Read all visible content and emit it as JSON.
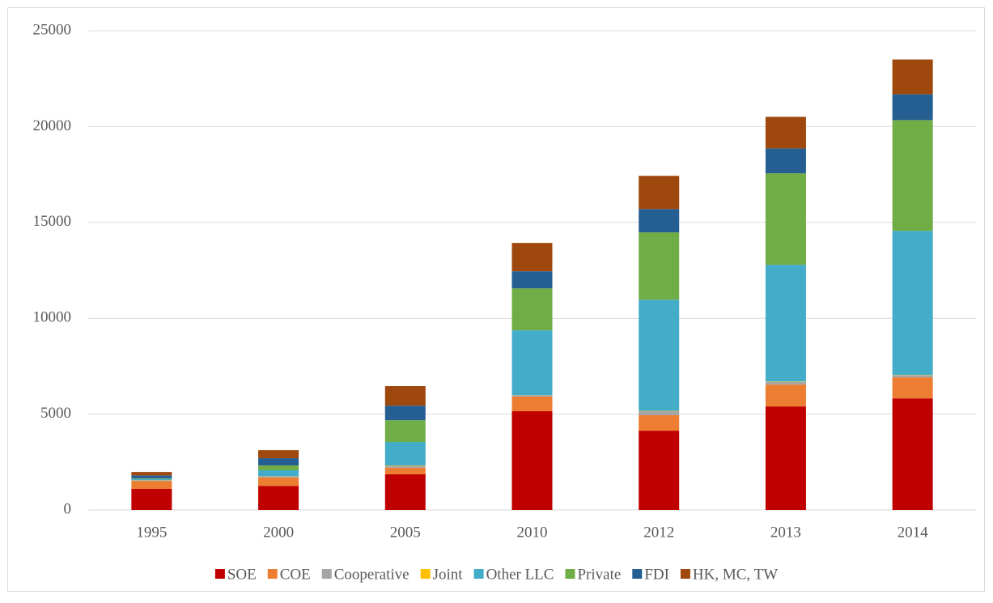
{
  "chart_data": {
    "type": "stacked_bar",
    "categories": [
      "1995",
      "2000",
      "2005",
      "2010",
      "2012",
      "2013",
      "2014"
    ],
    "series": [
      {
        "name": "SOE",
        "color": "#c00000",
        "values": [
          1100,
          1250,
          1860,
          5150,
          4135,
          5400,
          5820
        ]
      },
      {
        "name": "COE",
        "color": "#ed7d31",
        "values": [
          400,
          450,
          340,
          760,
          805,
          1140,
          1100
        ]
      },
      {
        "name": "Cooperative",
        "color": "#a5a5a5",
        "values": [
          50,
          50,
          100,
          70,
          210,
          140,
          100
        ]
      },
      {
        "name": "Joint",
        "color": "#ffc000",
        "values": [
          10,
          10,
          20,
          10,
          20,
          20,
          20
        ]
      },
      {
        "name": "Other LLC",
        "color": "#43acc8",
        "values": [
          60,
          310,
          1225,
          3380,
          5800,
          6090,
          7520
        ]
      },
      {
        "name": "Private",
        "color": "#70ad47",
        "values": [
          30,
          250,
          1135,
          2190,
          3510,
          4770,
          5780
        ]
      },
      {
        "name": "FDI",
        "color": "#255e91",
        "values": [
          150,
          380,
          760,
          890,
          1220,
          1300,
          1350
        ]
      },
      {
        "name": "HK, MC, TW",
        "color": "#9e480e",
        "values": [
          180,
          420,
          1020,
          1480,
          1730,
          1650,
          1810
        ]
      }
    ],
    "ylim": [
      0,
      25000
    ],
    "yticks": [
      0,
      5000,
      10000,
      15000,
      20000,
      25000
    ],
    "grid": true,
    "legend": "bottom"
  }
}
